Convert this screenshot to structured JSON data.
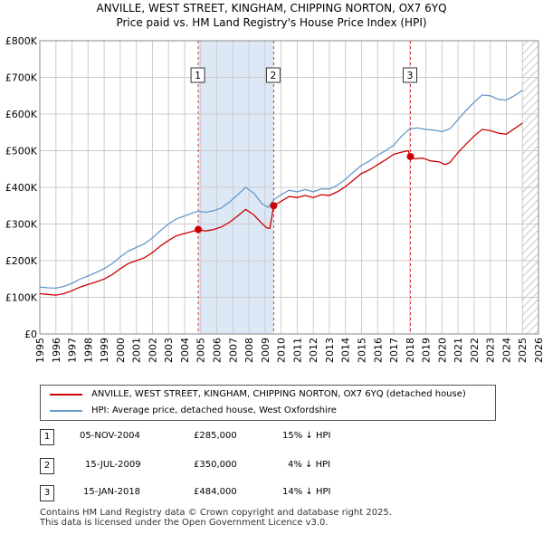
{
  "title_line1": "ANVILLE, WEST STREET, KINGHAM, CHIPPING NORTON, OX7 6YQ",
  "title_line2": "Price paid vs. HM Land Registry's House Price Index (HPI)",
  "colors": {
    "property": "#cc0000",
    "hpi": "#6699cc",
    "shade": "#dde8f7",
    "grid": "#cccccc",
    "marker": "#cc0000"
  },
  "chart_data": {
    "type": "line",
    "title": "ANVILLE, WEST STREET, KINGHAM, CHIPPING NORTON, OX7 6YQ",
    "subtitle": "Price paid vs. HM Land Registry's House Price Index (HPI)",
    "xlim": [
      1995,
      2026
    ],
    "ylim": [
      0,
      800000
    ],
    "x_ticks": [
      "1995",
      "1996",
      "1997",
      "1998",
      "1999",
      "2000",
      "2001",
      "2002",
      "2003",
      "2004",
      "2005",
      "2006",
      "2007",
      "2008",
      "2009",
      "2010",
      "2011",
      "2012",
      "2013",
      "2014",
      "2015",
      "2016",
      "2017",
      "2018",
      "2019",
      "2020",
      "2021",
      "2022",
      "2023",
      "2024",
      "2025",
      "2026"
    ],
    "y_ticks": [
      {
        "value": 0,
        "label": "£0"
      },
      {
        "value": 100000,
        "label": "£100K"
      },
      {
        "value": 200000,
        "label": "£200K"
      },
      {
        "value": 300000,
        "label": "£300K"
      },
      {
        "value": 400000,
        "label": "£400K"
      },
      {
        "value": 500000,
        "label": "£500K"
      },
      {
        "value": 600000,
        "label": "£600K"
      },
      {
        "value": 700000,
        "label": "£700K"
      },
      {
        "value": 800000,
        "label": "£800K"
      }
    ],
    "shaded_ranges": [
      [
        2004.85,
        2009.54
      ]
    ],
    "hatched_after": 2025.0,
    "series": [
      {
        "name": "ANVILLE, WEST STREET, KINGHAM, CHIPPING NORTON, OX7 6YQ (detached house)",
        "points": [
          [
            1995.0,
            110000
          ],
          [
            1995.5,
            108000
          ],
          [
            1996.0,
            106000
          ],
          [
            1996.5,
            110000
          ],
          [
            1997.0,
            118000
          ],
          [
            1997.5,
            128000
          ],
          [
            1998.0,
            135000
          ],
          [
            1998.5,
            142000
          ],
          [
            1999.0,
            150000
          ],
          [
            1999.5,
            162000
          ],
          [
            2000.0,
            178000
          ],
          [
            2000.5,
            192000
          ],
          [
            2001.0,
            200000
          ],
          [
            2001.5,
            208000
          ],
          [
            2002.0,
            222000
          ],
          [
            2002.5,
            240000
          ],
          [
            2003.0,
            255000
          ],
          [
            2003.5,
            268000
          ],
          [
            2004.0,
            274000
          ],
          [
            2004.5,
            280000
          ],
          [
            2004.85,
            285000
          ],
          [
            2005.3,
            281000
          ],
          [
            2005.8,
            285000
          ],
          [
            2006.3,
            292000
          ],
          [
            2006.8,
            305000
          ],
          [
            2007.3,
            322000
          ],
          [
            2007.8,
            340000
          ],
          [
            2008.3,
            325000
          ],
          [
            2008.8,
            302000
          ],
          [
            2009.1,
            290000
          ],
          [
            2009.3,
            288000
          ],
          [
            2009.54,
            350000
          ],
          [
            2010.0,
            362000
          ],
          [
            2010.5,
            375000
          ],
          [
            2011.0,
            372000
          ],
          [
            2011.5,
            378000
          ],
          [
            2012.0,
            372000
          ],
          [
            2012.5,
            380000
          ],
          [
            2013.0,
            378000
          ],
          [
            2013.5,
            388000
          ],
          [
            2014.0,
            402000
          ],
          [
            2014.5,
            420000
          ],
          [
            2015.0,
            438000
          ],
          [
            2015.5,
            448000
          ],
          [
            2016.0,
            462000
          ],
          [
            2016.5,
            475000
          ],
          [
            2017.0,
            490000
          ],
          [
            2017.5,
            496000
          ],
          [
            2017.9,
            500000
          ],
          [
            2018.04,
            484000
          ],
          [
            2018.3,
            478000
          ],
          [
            2018.8,
            480000
          ],
          [
            2019.3,
            472000
          ],
          [
            2019.8,
            470000
          ],
          [
            2020.2,
            462000
          ],
          [
            2020.5,
            468000
          ],
          [
            2021.0,
            495000
          ],
          [
            2021.5,
            518000
          ],
          [
            2022.0,
            540000
          ],
          [
            2022.5,
            558000
          ],
          [
            2023.0,
            555000
          ],
          [
            2023.5,
            548000
          ],
          [
            2024.0,
            545000
          ],
          [
            2024.5,
            560000
          ],
          [
            2025.0,
            575000
          ]
        ]
      },
      {
        "name": "HPI: Average price, detached house, West Oxfordshire",
        "points": [
          [
            1995.0,
            128000
          ],
          [
            1995.5,
            126000
          ],
          [
            1996.0,
            125000
          ],
          [
            1996.5,
            130000
          ],
          [
            1997.0,
            138000
          ],
          [
            1997.5,
            150000
          ],
          [
            1998.0,
            158000
          ],
          [
            1998.5,
            168000
          ],
          [
            1999.0,
            178000
          ],
          [
            1999.5,
            192000
          ],
          [
            2000.0,
            210000
          ],
          [
            2000.5,
            226000
          ],
          [
            2001.0,
            236000
          ],
          [
            2001.5,
            246000
          ],
          [
            2002.0,
            262000
          ],
          [
            2002.5,
            282000
          ],
          [
            2003.0,
            300000
          ],
          [
            2003.5,
            314000
          ],
          [
            2004.0,
            322000
          ],
          [
            2004.5,
            330000
          ],
          [
            2004.85,
            335000
          ],
          [
            2005.3,
            332000
          ],
          [
            2005.8,
            336000
          ],
          [
            2006.3,
            344000
          ],
          [
            2006.8,
            360000
          ],
          [
            2007.3,
            380000
          ],
          [
            2007.8,
            400000
          ],
          [
            2008.3,
            384000
          ],
          [
            2008.8,
            356000
          ],
          [
            2009.2,
            345000
          ],
          [
            2009.54,
            366000
          ],
          [
            2010.0,
            380000
          ],
          [
            2010.5,
            392000
          ],
          [
            2011.0,
            388000
          ],
          [
            2011.5,
            394000
          ],
          [
            2012.0,
            388000
          ],
          [
            2012.5,
            396000
          ],
          [
            2013.0,
            395000
          ],
          [
            2013.5,
            406000
          ],
          [
            2014.0,
            422000
          ],
          [
            2014.5,
            442000
          ],
          [
            2015.0,
            460000
          ],
          [
            2015.5,
            472000
          ],
          [
            2016.0,
            488000
          ],
          [
            2016.5,
            500000
          ],
          [
            2017.0,
            515000
          ],
          [
            2017.5,
            540000
          ],
          [
            2018.0,
            560000
          ],
          [
            2018.5,
            562000
          ],
          [
            2019.0,
            558000
          ],
          [
            2019.5,
            556000
          ],
          [
            2020.0,
            552000
          ],
          [
            2020.5,
            560000
          ],
          [
            2021.0,
            585000
          ],
          [
            2021.5,
            610000
          ],
          [
            2022.0,
            632000
          ],
          [
            2022.5,
            652000
          ],
          [
            2023.0,
            650000
          ],
          [
            2023.5,
            640000
          ],
          [
            2024.0,
            638000
          ],
          [
            2024.5,
            650000
          ],
          [
            2025.0,
            665000
          ]
        ]
      }
    ],
    "sales": [
      {
        "label": "1",
        "x": 2004.85,
        "y": 285000
      },
      {
        "label": "2",
        "x": 2009.54,
        "y": 350000
      },
      {
        "label": "3",
        "x": 2018.04,
        "y": 484000
      }
    ]
  },
  "legend": {
    "property": "ANVILLE, WEST STREET, KINGHAM, CHIPPING NORTON, OX7 6YQ (detached house)",
    "hpi": "HPI: Average price, detached house, West Oxfordshire"
  },
  "transactions": [
    {
      "num": "1",
      "date": "05-NOV-2004",
      "price": "£285,000",
      "diff": "15% ↓ HPI"
    },
    {
      "num": "2",
      "date": "15-JUL-2009",
      "price": "£350,000",
      "diff": "4% ↓ HPI"
    },
    {
      "num": "3",
      "date": "15-JAN-2018",
      "price": "£484,000",
      "diff": "14% ↓ HPI"
    }
  ],
  "footer": {
    "line1": "Contains HM Land Registry data © Crown copyright and database right 2025.",
    "line2": "This data is licensed under the Open Government Licence v3.0."
  }
}
